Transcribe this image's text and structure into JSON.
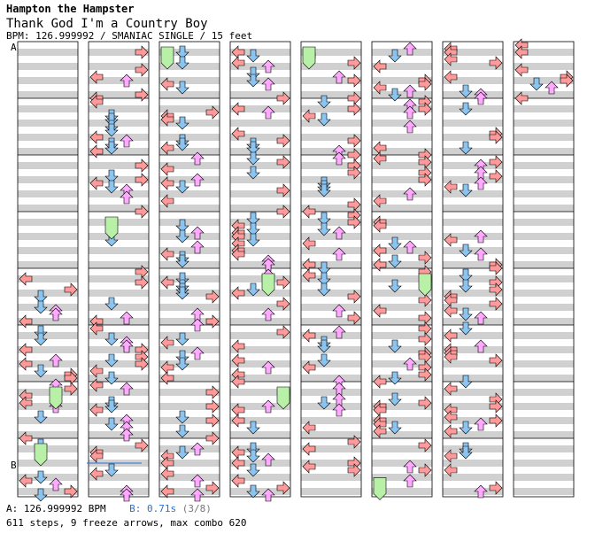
{
  "header": {
    "artist": "Hampton the Hampster",
    "title": "Thank God I'm a Country Boy",
    "info": "BPM: 126.999992 / SMANIAC SINGLE / 15 feet"
  },
  "footer": {
    "bpm_a_label": "A: 126.999992 BPM",
    "stop_b_prefix": "B:",
    "stop_b_value": "0.71s",
    "stop_b_count": "(3/8)",
    "stats": "611 steps, 9 freeze arrows, max combo 620"
  },
  "chart_data": {
    "type": "step-chart",
    "columns": 8,
    "measures_per_column": 8,
    "markers": [
      {
        "label": "A",
        "column": 0,
        "measure": 0
      },
      {
        "label": "B",
        "column": 0,
        "measure": 7
      }
    ],
    "colors": {
      "left": "#ff9a9a",
      "down": "#8cc4f0",
      "up": "#ffaaff",
      "right": "#ff9a9a",
      "freeze": "#b8f0a8",
      "stripe": "#d0d0d0"
    }
  }
}
